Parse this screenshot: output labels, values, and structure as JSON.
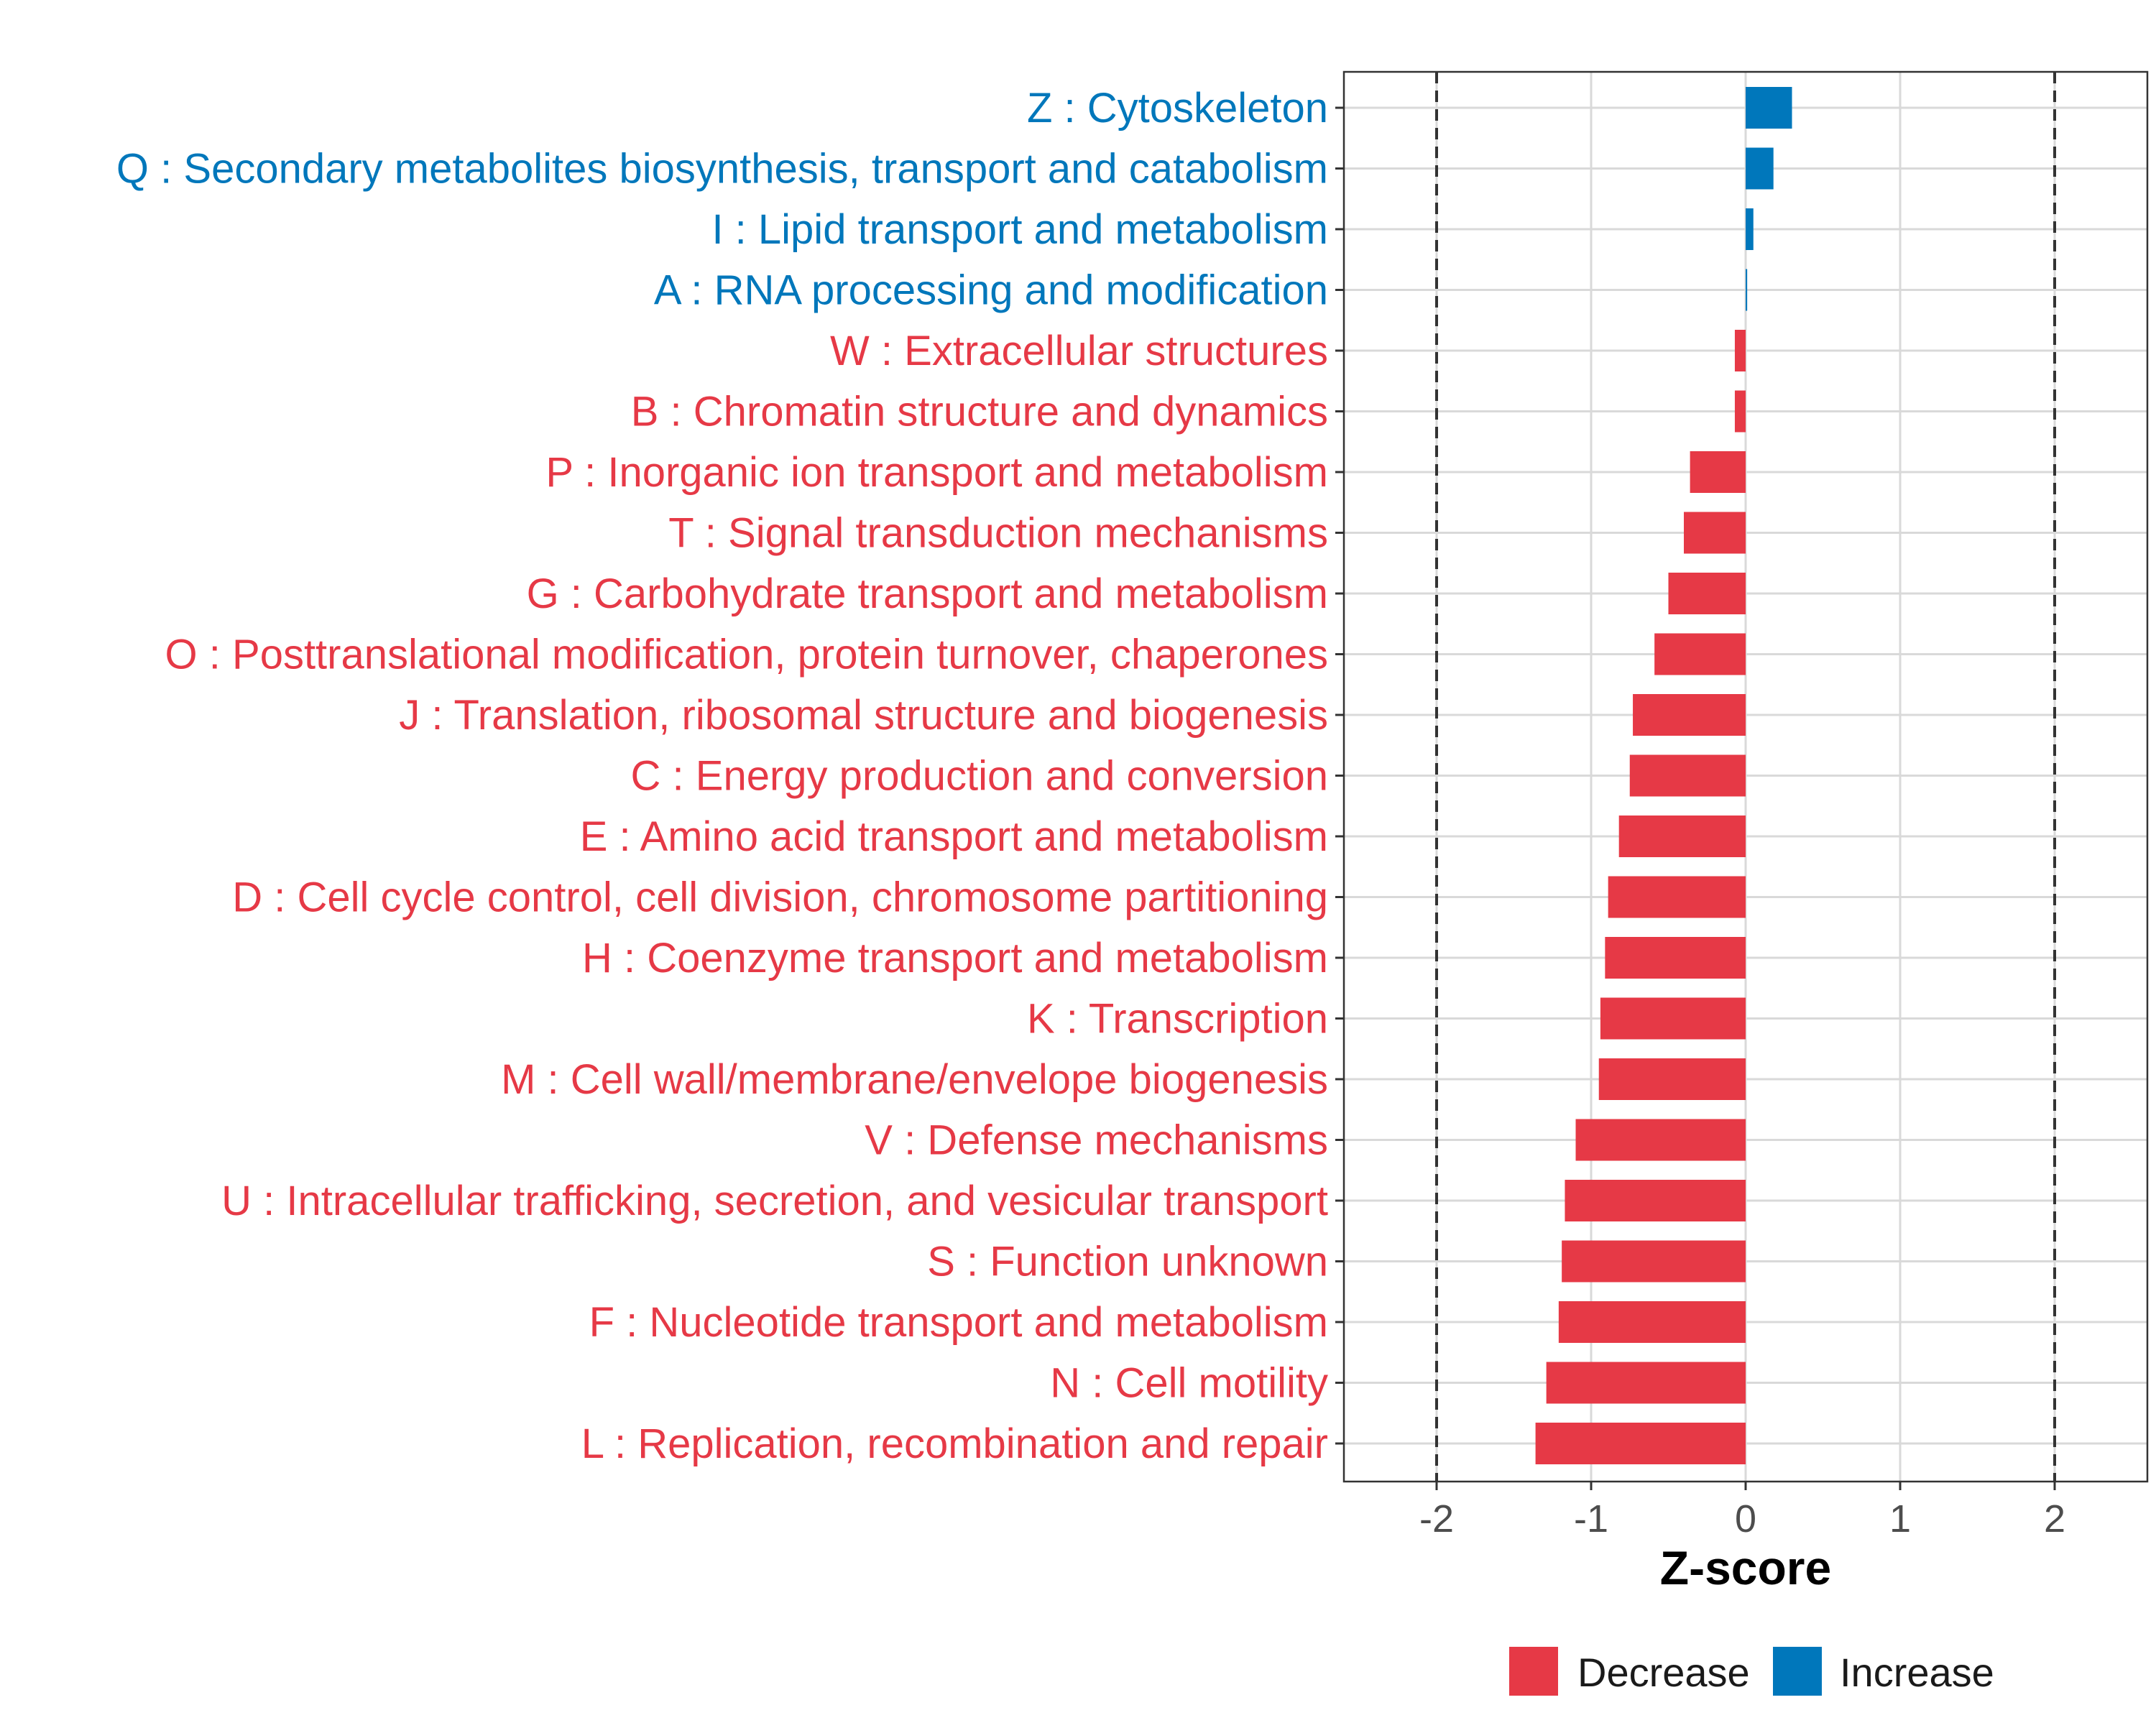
{
  "chart_data": {
    "type": "bar",
    "orientation": "horizontal",
    "title": "",
    "xlabel": "Z-score",
    "ylabel": "",
    "xlim": [
      -2.6,
      2.6
    ],
    "x_ticks": [
      -2,
      -1,
      0,
      1,
      2
    ],
    "x_tick_labels": [
      "-2",
      "-1",
      "0",
      "1",
      "2"
    ],
    "reference_lines": [
      -2,
      2
    ],
    "grid": true,
    "legend_position": "bottom",
    "legend": [
      {
        "name": "Decrease",
        "color": "#E63946"
      },
      {
        "name": "Increase",
        "color": "#0077BB"
      }
    ],
    "categories": [
      "Z : Cytoskeleton",
      "Q : Secondary metabolites biosynthesis, transport and catabolism",
      "I : Lipid transport and metabolism",
      "A : RNA processing and modification",
      "W : Extracellular structures",
      "B : Chromatin structure and dynamics",
      "P : Inorganic ion transport and metabolism",
      "T : Signal transduction mechanisms",
      "G : Carbohydrate transport and metabolism",
      "O : Posttranslational modification, protein turnover, chaperones",
      "J : Translation, ribosomal structure and biogenesis",
      "C : Energy production and conversion",
      "E : Amino acid transport and metabolism",
      "D : Cell cycle control, cell division, chromosome partitioning",
      "H : Coenzyme transport and metabolism",
      "K : Transcription",
      "M : Cell wall/membrane/envelope biogenesis",
      "V : Defense mechanisms",
      "U : Intracellular trafficking, secretion, and vesicular transport",
      "S : Function unknown",
      "F : Nucleotide transport and metabolism",
      "N : Cell motility",
      "L : Replication, recombination and repair"
    ],
    "values": [
      0.3,
      0.18,
      0.05,
      0.01,
      -0.07,
      -0.07,
      -0.36,
      -0.4,
      -0.5,
      -0.59,
      -0.73,
      -0.75,
      -0.82,
      -0.89,
      -0.91,
      -0.94,
      -0.95,
      -1.1,
      -1.17,
      -1.19,
      -1.21,
      -1.29,
      -1.36
    ],
    "groups": [
      "Increase",
      "Increase",
      "Increase",
      "Increase",
      "Decrease",
      "Decrease",
      "Decrease",
      "Decrease",
      "Decrease",
      "Decrease",
      "Decrease",
      "Decrease",
      "Decrease",
      "Decrease",
      "Decrease",
      "Decrease",
      "Decrease",
      "Decrease",
      "Decrease",
      "Decrease",
      "Decrease",
      "Decrease",
      "Decrease"
    ],
    "colors": {
      "Decrease": "#E63946",
      "Increase": "#0077BB",
      "grid": "#d9d9d9",
      "reference_line": "#333333",
      "panel_border": "#333333",
      "tick_text": "#4d4d4d"
    }
  }
}
